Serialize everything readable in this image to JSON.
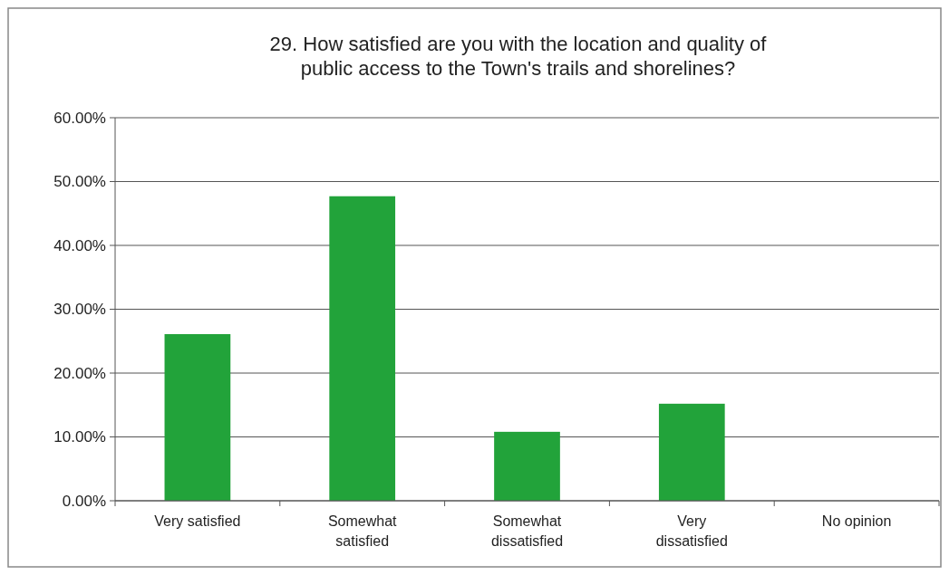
{
  "chart_data": {
    "type": "bar",
    "title": "29. How satisfied are you with the location and quality of public access to the Town's trails and shorelines?",
    "categories": [
      "Very satisfied",
      "Somewhat satisfied",
      "Somewhat dissatisfied",
      "Very dissatisfied",
      "No opinion"
    ],
    "values": [
      26.1,
      47.7,
      10.8,
      15.2,
      0
    ],
    "color": "#22a33a",
    "ylim": [
      0,
      60
    ],
    "yticks": [
      {
        "value": 0,
        "label": "0.00%"
      },
      {
        "value": 10,
        "label": "10.00%"
      },
      {
        "value": 20,
        "label": "20.00%"
      },
      {
        "value": 30,
        "label": "30.00%"
      },
      {
        "value": 40,
        "label": "40.00%"
      },
      {
        "value": 50,
        "label": "50.00%"
      },
      {
        "value": 60,
        "label": "60.00%"
      }
    ],
    "grid": "y"
  }
}
